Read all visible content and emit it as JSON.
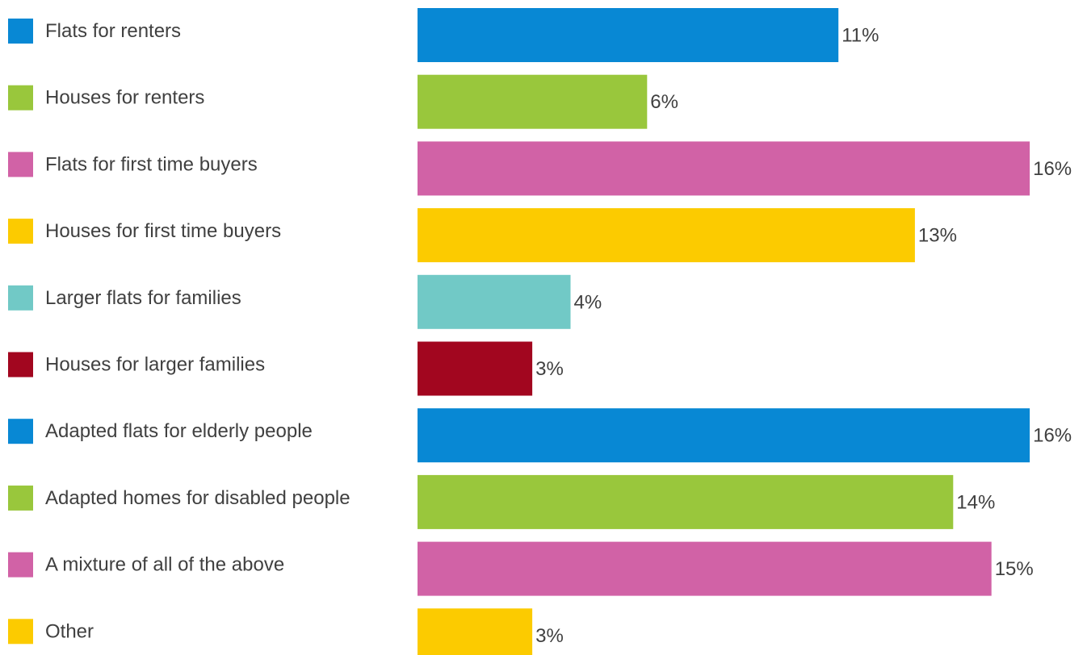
{
  "chart_data": {
    "type": "bar",
    "orientation": "horizontal",
    "categories": [
      "Flats for renters",
      "Houses for renters",
      "Flats for first time buyers",
      "Houses for first time buyers",
      "Larger flats for families",
      "Houses for larger families",
      "Adapted flats for elderly people",
      "Adapted homes for disabled people",
      "A mixture of all of the above",
      "Other"
    ],
    "values": [
      11,
      6,
      16,
      13,
      4,
      3,
      16,
      14,
      15,
      3
    ],
    "value_labels": [
      "11%",
      "6%",
      "16%",
      "13%",
      "4%",
      "3%",
      "16%",
      "14%",
      "15%",
      "3%"
    ],
    "colors": [
      "#0888d4",
      "#99c73c",
      "#d162a6",
      "#fccb00",
      "#71c9c6",
      "#a2061f",
      "#0888d4",
      "#99c73c",
      "#d162a6",
      "#fccb00"
    ],
    "unit": "%",
    "xlim": [
      0,
      16.5
    ],
    "title": "",
    "xlabel": "",
    "ylabel": "",
    "grid": false,
    "legend_position": "left"
  }
}
